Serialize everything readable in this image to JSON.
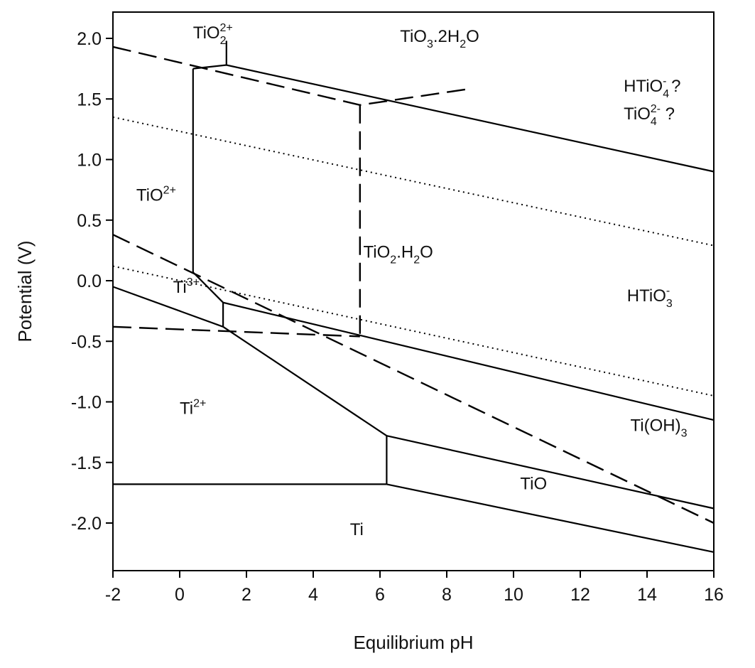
{
  "chart_data": {
    "type": "line",
    "title": "",
    "xlabel": "Equilibrium pH",
    "ylabel": "Potential (V)",
    "xlim": [
      -2,
      16
    ],
    "ylim": [
      -2.4,
      2.2
    ],
    "xticks": [
      -2,
      0,
      2,
      4,
      6,
      8,
      10,
      12,
      14,
      16
    ],
    "yticks": [
      2.0,
      1.5,
      1.0,
      0.5,
      0.0,
      -0.5,
      -1.0,
      -1.5,
      -2.0
    ],
    "xtick_labels": [
      "-2",
      "0",
      "2",
      "4",
      "6",
      "8",
      "10",
      "12",
      "14",
      "16"
    ],
    "ytick_labels": [
      "2.0",
      "1.5",
      "1.0",
      "0.5",
      "0.0",
      "-0.5",
      "-1.0",
      "-1.5",
      "-2.0"
    ],
    "grid": false,
    "series": [
      {
        "name": "TiO3.2H2O / TiO2.H2O (upper)",
        "style": "solid",
        "x": [
          0.4,
          1.4,
          16
        ],
        "y": [
          1.75,
          1.78,
          0.9
        ]
      },
      {
        "name": "TiO2+ / TiO2.H2O vertical",
        "style": "solid",
        "x": [
          0.4,
          0.4
        ],
        "y": [
          1.75,
          0.07
        ]
      },
      {
        "name": "TiO2^2+ / TiO3.2H2O vertical",
        "style": "solid",
        "x": [
          1.4,
          1.4
        ],
        "y": [
          1.78,
          1.98
        ]
      },
      {
        "name": "Ti3+ / TiO2.H2O",
        "style": "solid",
        "x": [
          0.4,
          1.3,
          16
        ],
        "y": [
          0.07,
          -0.18,
          -1.15
        ]
      },
      {
        "name": "Ti3+ / Ti2+",
        "style": "solid",
        "x": [
          -2,
          1.3
        ],
        "y": [
          -0.05,
          -0.38
        ]
      },
      {
        "name": "Ti3+ vertical",
        "style": "solid",
        "x": [
          1.3,
          1.3
        ],
        "y": [
          -0.18,
          -0.38
        ]
      },
      {
        "name": "Ti2+ / Ti(OH)3",
        "style": "solid",
        "x": [
          1.3,
          6.2
        ],
        "y": [
          -0.38,
          -1.28
        ]
      },
      {
        "name": "Ti(OH)3 / TiO",
        "style": "solid",
        "x": [
          6.2,
          16
        ],
        "y": [
          -1.28,
          -1.88
        ]
      },
      {
        "name": "Ti2+ / TiO vertical",
        "style": "solid",
        "x": [
          6.2,
          6.2
        ],
        "y": [
          -1.28,
          -1.68
        ]
      },
      {
        "name": "Ti / Ti2+",
        "style": "solid",
        "x": [
          -2,
          6.2
        ],
        "y": [
          -1.68,
          -1.68
        ]
      },
      {
        "name": "Ti / TiO",
        "style": "solid",
        "x": [
          6.2,
          16
        ],
        "y": [
          -1.68,
          -2.24
        ]
      },
      {
        "name": "dashed upper",
        "style": "dashed",
        "x": [
          -2,
          5.4,
          8.6
        ],
        "y": [
          1.93,
          1.45,
          1.58
        ]
      },
      {
        "name": "dashed vertical",
        "style": "dashed",
        "x": [
          5.4,
          5.4
        ],
        "y": [
          1.45,
          -0.46
        ]
      },
      {
        "name": "dashed horizontal",
        "style": "dashed",
        "x": [
          -2,
          5.4
        ],
        "y": [
          -0.38,
          -0.46
        ]
      },
      {
        "name": "dashed diagonal",
        "style": "dashed",
        "x": [
          -2,
          16
        ],
        "y": [
          0.38,
          -2.0
        ]
      },
      {
        "name": "dotted upper (O2)",
        "style": "dotted",
        "x": [
          -2,
          16
        ],
        "y": [
          1.35,
          0.29
        ]
      },
      {
        "name": "dotted lower (H2)",
        "style": "dotted",
        "x": [
          -2,
          16
        ],
        "y": [
          0.12,
          -0.95
        ]
      }
    ],
    "annotations": [
      {
        "base": "TiO",
        "sub": "2",
        "sup": "2+",
        "x": 0.4,
        "y": 2.0
      },
      {
        "base": "TiO",
        "sub": "3",
        "rest": ".2H",
        "sub2": "2",
        "tail": "O",
        "x": 6.6,
        "y": 1.97
      },
      {
        "base": "HTiO",
        "sub": "4",
        "sup": "-",
        "tail": " ?",
        "x": 13.3,
        "y": 1.56
      },
      {
        "base": "TiO",
        "sub": "4",
        "sup": "2-",
        "tail": " ?",
        "x": 13.3,
        "y": 1.33
      },
      {
        "base": "TiO",
        "sup": "2+",
        "x": -1.3,
        "y": 0.66
      },
      {
        "base": "TiO",
        "sub": "2",
        "rest": ".H",
        "sub2": "2",
        "tail": "O",
        "x": 5.5,
        "y": 0.19
      },
      {
        "base": "HTiO",
        "sub": "3",
        "sup": "-",
        "x": 13.4,
        "y": -0.17
      },
      {
        "base": "Ti",
        "sup": "3+",
        "x": -0.2,
        "y": -0.1
      },
      {
        "base": "Ti",
        "sup": "2+",
        "x": 0.0,
        "y": -1.1
      },
      {
        "base": "Ti(OH)",
        "sub": "3",
        "x": 13.5,
        "y": -1.24
      },
      {
        "base": "TiO",
        "x": 10.2,
        "y": -1.72
      },
      {
        "base": "Ti",
        "x": 5.1,
        "y": -2.1
      }
    ]
  }
}
